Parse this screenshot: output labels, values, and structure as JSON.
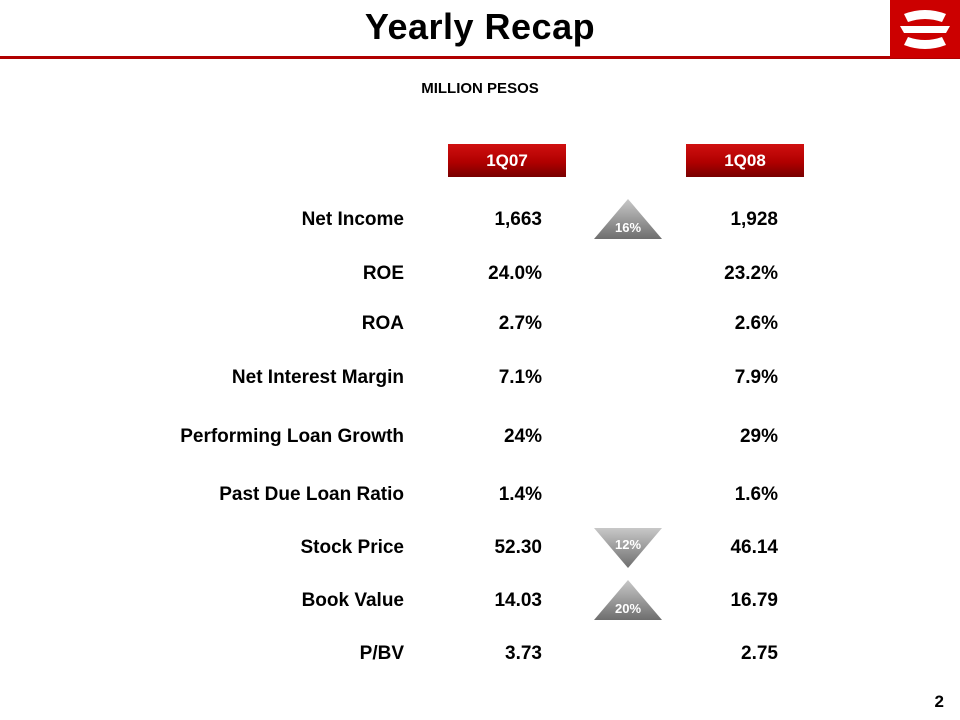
{
  "title": "Yearly Recap",
  "subtitle": "MILLION PESOS",
  "logo_icon": "bank-logo-icon",
  "accent_color": "#b00000",
  "columns": [
    "1Q07",
    "1Q08"
  ],
  "rows": [
    {
      "label": "Net Income",
      "q07": "1,663",
      "q08": "1,928"
    },
    {
      "label": "ROE",
      "q07": "24.0%",
      "q08": "23.2%"
    },
    {
      "label": "ROA",
      "q07": "2.7%",
      "q08": "2.6%"
    },
    {
      "label": "Net Interest Margin",
      "q07": "7.1%",
      "q08": "7.9%"
    },
    {
      "label": "Performing Loan Growth",
      "q07": "24%",
      "q08": "29%"
    },
    {
      "label": "Past Due Loan Ratio",
      "q07": "1.4%",
      "q08": "1.6%"
    },
    {
      "label": "Stock Price",
      "q07": "52.30",
      "q08": "46.14"
    },
    {
      "label": "Book Value",
      "q07": "14.03",
      "q08": "16.79"
    },
    {
      "label": "P/BV",
      "q07": "3.73",
      "q08": "2.75"
    }
  ],
  "changes": [
    {
      "row": "Net Income",
      "value": "16%",
      "direction": "up"
    },
    {
      "row": "Stock Price",
      "value": "12%",
      "direction": "down"
    },
    {
      "row": "Book Value",
      "value": "20%",
      "direction": "up"
    }
  ],
  "page_number": "2"
}
